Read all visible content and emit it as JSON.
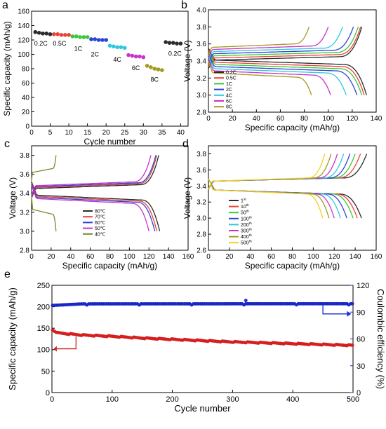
{
  "chart_data": [
    {
      "panel": "a",
      "type": "scatter",
      "xlabel": "Cycle number",
      "ylabel": "Specific capacity (mAh/g)",
      "xlim": [
        0,
        42
      ],
      "ylim": [
        0,
        160
      ],
      "xticks": [
        0,
        5,
        10,
        15,
        20,
        25,
        30,
        35,
        40
      ],
      "yticks": [
        0,
        20,
        40,
        60,
        80,
        100,
        120,
        140,
        160
      ],
      "series": [
        {
          "name": "0.2C",
          "color": "#2b2b2b",
          "x": [
            1,
            2,
            3,
            4,
            5
          ],
          "y": [
            131,
            130,
            129,
            129,
            128
          ]
        },
        {
          "name": "0.5C",
          "color": "#e8433a",
          "x": [
            6,
            7,
            8,
            9,
            10
          ],
          "y": [
            128,
            128,
            127,
            127,
            127
          ]
        },
        {
          "name": "1C",
          "color": "#3ec63a",
          "x": [
            11,
            12,
            13,
            14,
            15
          ],
          "y": [
            125,
            125,
            124,
            124,
            124
          ]
        },
        {
          "name": "2C",
          "color": "#2a44d6",
          "x": [
            16,
            17,
            18,
            19,
            20
          ],
          "y": [
            121,
            121,
            120,
            120,
            120
          ]
        },
        {
          "name": "4C",
          "color": "#2ec7dd",
          "x": [
            21,
            22,
            23,
            24,
            25
          ],
          "y": [
            112,
            111,
            110,
            110,
            109
          ]
        },
        {
          "name": "6C",
          "color": "#c833c8",
          "x": [
            26,
            27,
            28,
            29,
            30
          ],
          "y": [
            99,
            98,
            97,
            97,
            96
          ]
        },
        {
          "name": "8C",
          "color": "#a39a1e",
          "x": [
            31,
            32,
            33,
            34,
            35
          ],
          "y": [
            84,
            82,
            80,
            79,
            78
          ]
        },
        {
          "name": "0.2C",
          "color": "#2b2b2b",
          "x": [
            36,
            37,
            38,
            39,
            40
          ],
          "y": [
            117,
            116,
            116,
            115,
            115
          ]
        }
      ]
    },
    {
      "panel": "b",
      "type": "line",
      "xlabel": "Specific capacity (mAh/g)",
      "ylabel": "Voltage (V)",
      "xlim": [
        0,
        140
      ],
      "ylim": [
        2.8,
        4.0
      ],
      "xticks": [
        0,
        20,
        40,
        60,
        80,
        100,
        120,
        140
      ],
      "yticks": [
        2.8,
        3.0,
        3.2,
        3.4,
        3.6,
        3.8,
        4.0
      ],
      "series": [
        {
          "name": "0.2C",
          "color": "#2b2b2b",
          "capacity": 132,
          "charge_end": 128
        },
        {
          "name": "0.5C",
          "color": "#e8433a",
          "capacity": 130,
          "charge_end": 127
        },
        {
          "name": "1C",
          "color": "#3ec63a",
          "capacity": 128,
          "charge_end": 125
        },
        {
          "name": "2C",
          "color": "#2a44d6",
          "capacity": 124,
          "charge_end": 121
        },
        {
          "name": "4C",
          "color": "#2ec7dd",
          "capacity": 115,
          "charge_end": 112
        },
        {
          "name": "6C",
          "color": "#c833c8",
          "capacity": 102,
          "charge_end": 100
        },
        {
          "name": "8C",
          "color": "#a39a1e",
          "capacity": 86,
          "charge_end": 84
        }
      ]
    },
    {
      "panel": "c",
      "type": "line",
      "xlabel": "Specific capacity (mAh/g)",
      "ylabel": "Voltage (V)",
      "xlim": [
        0,
        160
      ],
      "ylim": [
        2.8,
        3.9
      ],
      "xticks": [
        0,
        20,
        40,
        60,
        80,
        100,
        120,
        140,
        160
      ],
      "yticks": [
        2.8,
        3.0,
        3.2,
        3.4,
        3.6,
        3.8
      ],
      "series": [
        {
          "name": "80℃",
          "color": "#2b2b2b",
          "capacity": 131,
          "charge_end": 130
        },
        {
          "name": "70℃",
          "color": "#e8433a",
          "capacity": 128,
          "charge_end": 128
        },
        {
          "name": "60℃",
          "color": "#2a44d6",
          "capacity": 126,
          "charge_end": 127
        },
        {
          "name": "50℃",
          "color": "#c833c8",
          "capacity": 120,
          "charge_end": 122
        },
        {
          "name": "40℃",
          "color": "#7a8a2a",
          "capacity": 25,
          "charge_end": 25
        }
      ]
    },
    {
      "panel": "d",
      "type": "line",
      "xlabel": "Specific capacity (mAh/g)",
      "ylabel": "Voltage (V)",
      "xlim": [
        0,
        160
      ],
      "ylim": [
        2.6,
        3.9
      ],
      "xticks": [
        0,
        20,
        40,
        60,
        80,
        100,
        120,
        140,
        160
      ],
      "yticks": [
        2.6,
        2.8,
        3.0,
        3.2,
        3.4,
        3.6,
        3.8
      ],
      "series": [
        {
          "name": "1st",
          "label": "1",
          "sup": "st",
          "color": "#2b2b2b",
          "capacity": 146,
          "charge_end": 151
        },
        {
          "name": "10th",
          "label": "10",
          "sup": "th",
          "color": "#e8433a",
          "capacity": 142,
          "charge_end": 145
        },
        {
          "name": "50th",
          "label": "50",
          "sup": "th",
          "color": "#3ec63a",
          "capacity": 138,
          "charge_end": 140
        },
        {
          "name": "100th",
          "label": "100",
          "sup": "th",
          "color": "#2a44d6",
          "capacity": 132,
          "charge_end": 135
        },
        {
          "name": "200th",
          "label": "200",
          "sup": "th",
          "color": "#2ec7dd",
          "capacity": 126,
          "charge_end": 129
        },
        {
          "name": "300th",
          "label": "300",
          "sup": "th",
          "color": "#c833c8",
          "capacity": 120,
          "charge_end": 123
        },
        {
          "name": "400th",
          "label": "400",
          "sup": "th",
          "color": "#a39a1e",
          "capacity": 115,
          "charge_end": 117
        },
        {
          "name": "500th",
          "label": "500",
          "sup": "th",
          "color": "#f2d21e",
          "capacity": 109,
          "charge_end": 111
        }
      ]
    },
    {
      "panel": "e",
      "type": "scatter",
      "xlabel": "Cycle number",
      "ylabel": "Specific capacity (mAh/g)",
      "ylabel_right": "Coulombic efficiency (%)",
      "xlim": [
        0,
        500
      ],
      "ylim": [
        0,
        250
      ],
      "ylim_right": [
        0,
        120
      ],
      "xticks": [
        0,
        100,
        200,
        300,
        400,
        500
      ],
      "yticks": [
        0,
        50,
        100,
        150,
        200,
        250
      ],
      "yticks_right": [
        0,
        30,
        60,
        90,
        120
      ],
      "series": [
        {
          "name": "Specific capacity",
          "axis": "left",
          "color": "#e02020",
          "x": [
            1,
            10,
            25,
            50,
            100,
            150,
            200,
            250,
            300,
            350,
            400,
            450,
            500
          ],
          "y": [
            146,
            139,
            137,
            134,
            131,
            127,
            124,
            121,
            118,
            116,
            114,
            112,
            110
          ]
        },
        {
          "name": "Coulombic efficiency",
          "axis": "right",
          "color": "#1a2ad8",
          "x": [
            1,
            50,
            100,
            150,
            200,
            250,
            300,
            322,
            350,
            400,
            450,
            500
          ],
          "y": [
            97,
            99.2,
            99.3,
            99.3,
            99.3,
            99.4,
            99.4,
            103,
            99.4,
            99.4,
            99.4,
            99.4
          ]
        }
      ]
    }
  ],
  "panels": {
    "a": {
      "letter": "a",
      "annotations": [
        "0.2C",
        "0.5C",
        "1C",
        "2C",
        "4C",
        "6C",
        "8C",
        "0.2C"
      ]
    },
    "b": {
      "letter": "b"
    },
    "c": {
      "letter": "c"
    },
    "d": {
      "letter": "d"
    },
    "e": {
      "letter": "e"
    }
  }
}
